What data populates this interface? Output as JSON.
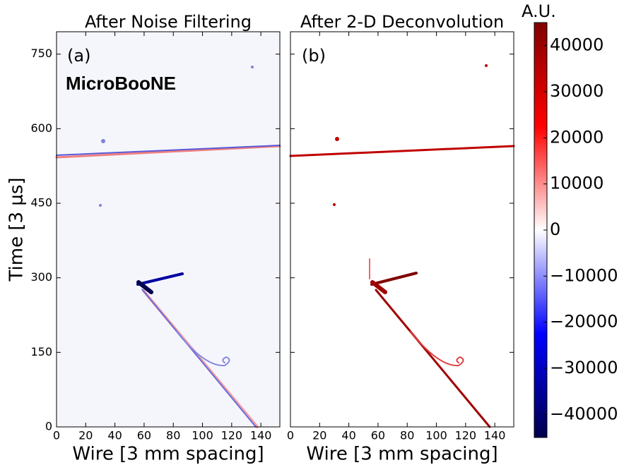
{
  "chart_data": [
    {
      "type": "heatmap",
      "title": "After Noise Filtering",
      "annotations": [
        "(a)",
        "MicroBooNE"
      ],
      "xlabel": "Wire [3 mm spacing]",
      "ylabel": "Time [3 μs]",
      "xlim": [
        0,
        153
      ],
      "xticks": [
        0,
        20,
        40,
        60,
        80,
        100,
        120,
        140
      ],
      "ylim": [
        0,
        795
      ],
      "yticks": [
        0,
        150,
        300,
        450,
        600,
        750
      ]
    },
    {
      "type": "heatmap",
      "title": "After 2-D Deconvolution",
      "annotations": [
        "(b)"
      ],
      "xlabel": "Wire [3 mm spacing]",
      "xlim": [
        0,
        153
      ],
      "xticks": [
        0,
        20,
        40,
        60,
        80,
        100,
        120,
        140
      ],
      "ylim": [
        0,
        795
      ]
    },
    {
      "type": "colorbar",
      "label": "A.U.",
      "clim": [
        -45000,
        45000
      ],
      "colormap": [
        "#00004c",
        "#0000ff",
        "#ffffff",
        "#ff0000",
        "#800000"
      ],
      "cticks": [
        40000,
        30000,
        20000,
        10000,
        0,
        {
          "value": -10000,
          "label": "−10000"
        },
        {
          "value": -20000,
          "label": "−20000"
        },
        {
          "value": -30000,
          "label": "−30000"
        },
        {
          "value": -40000,
          "label": "−40000"
        }
      ]
    }
  ]
}
